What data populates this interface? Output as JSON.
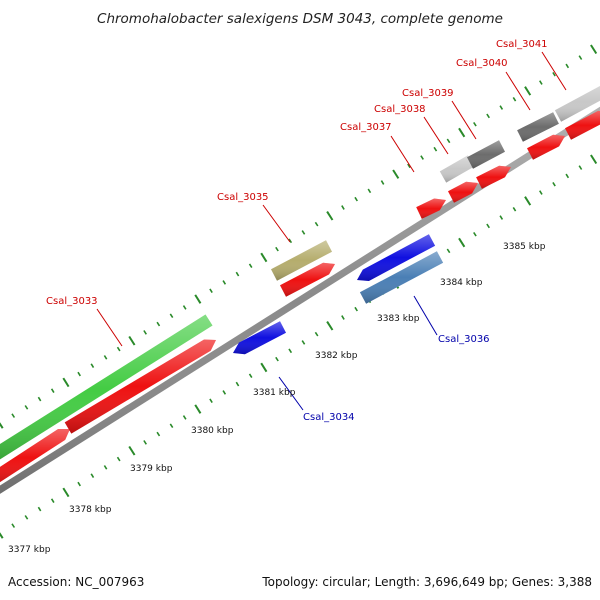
{
  "title": "Chromohalobacter salexigens DSM 3043, complete genome",
  "footer": {
    "accession": "Accession: NC_007963",
    "summary": "Topology: circular; Length: 3,696,649 bp; Genes: 3,388"
  },
  "scale_labels": [
    "3377 kbp",
    "3378 kbp",
    "3379 kbp",
    "3380 kbp",
    "3381 kbp",
    "3382 kbp",
    "3383 kbp",
    "3384 kbp",
    "3385 kbp"
  ],
  "gene_labels": [
    "Csal_3033",
    "Csal_3034",
    "Csal_3035",
    "Csal_3036",
    "Csal_3037",
    "Csal_3038",
    "Csal_3039",
    "Csal_3040",
    "Csal_3041"
  ],
  "colors": {
    "backbone": "#8a8a8a",
    "forward_cds": "#ee1111",
    "reverse_cds": "#1010e0",
    "gene_forward": "#44cc44",
    "gene_olive": "#b5ad6d",
    "gene_steel": "#4a7fb5",
    "gene_light": "#c8c8c8",
    "gene_dark": "#6c6c6c",
    "tick": "#2a8a2a",
    "label_forward": "#cc0000",
    "label_reverse": "#0000aa"
  }
}
